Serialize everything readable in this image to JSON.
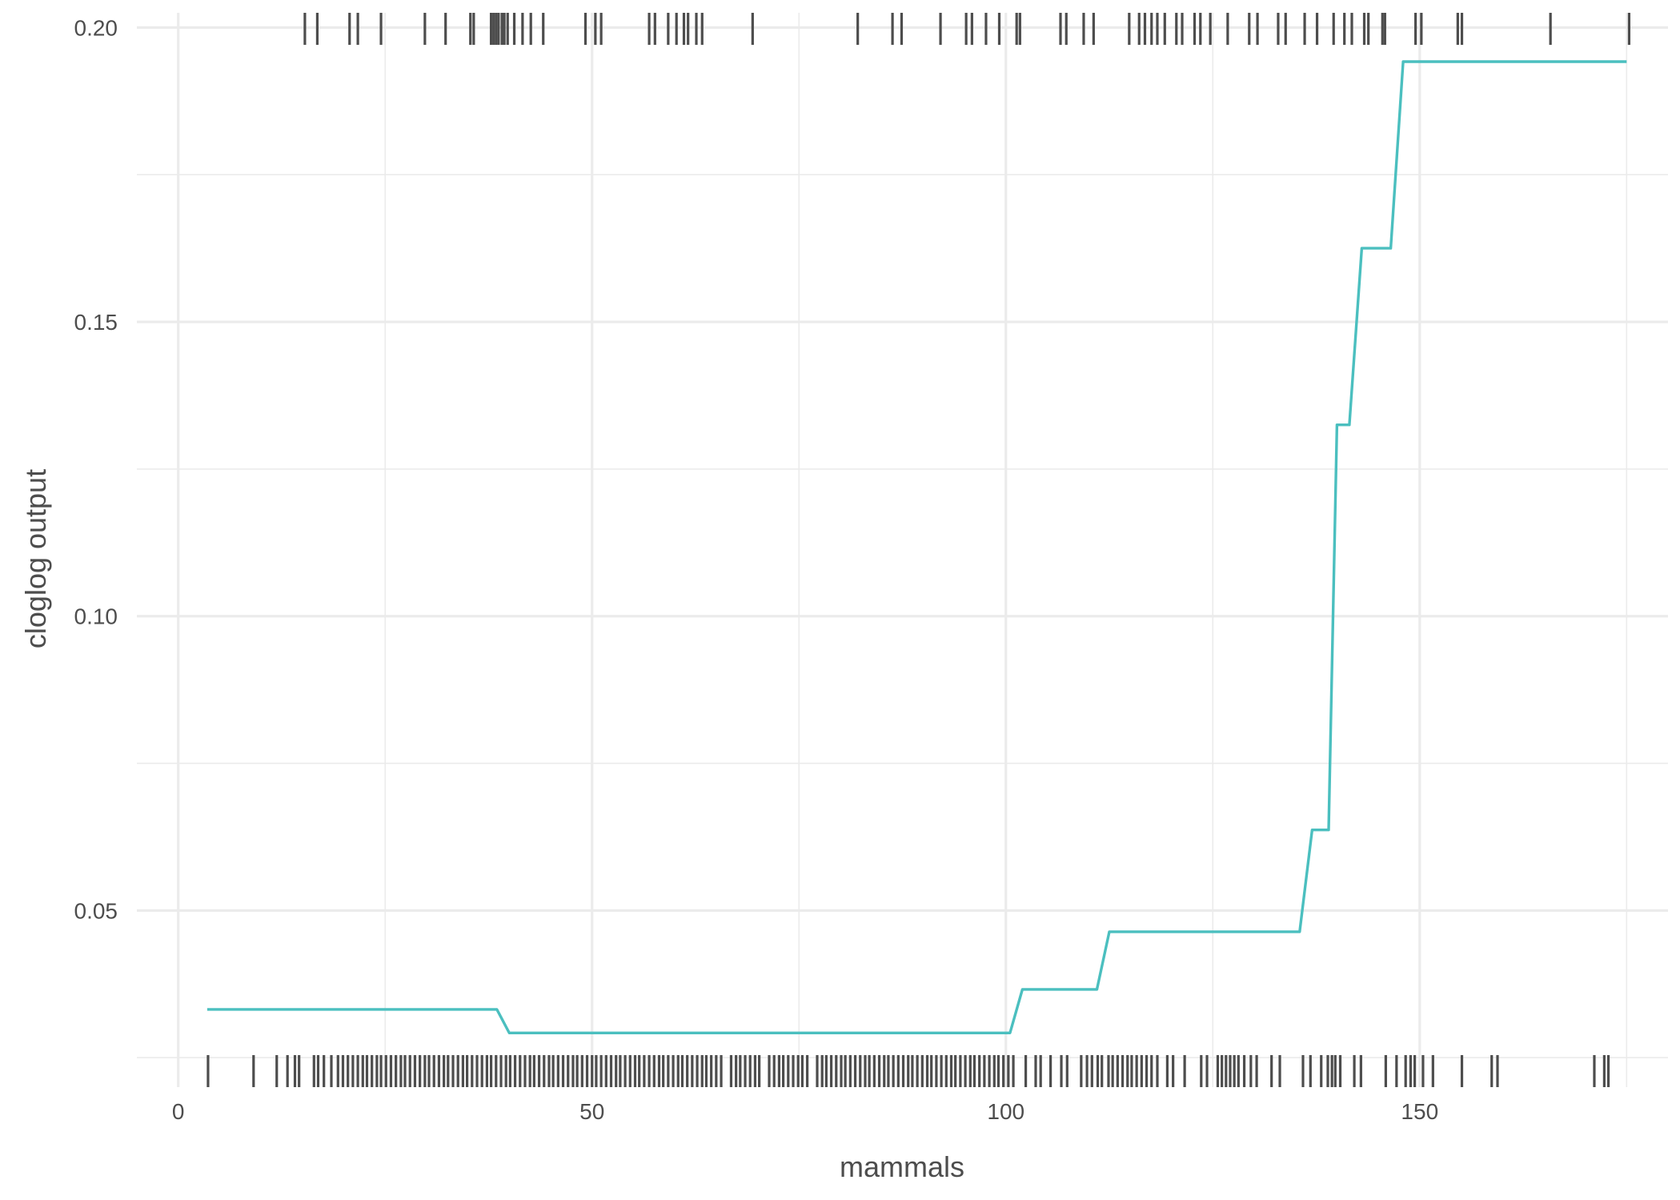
{
  "chart_data": {
    "type": "line",
    "title": "",
    "xlabel": "mammals",
    "ylabel": "cloglog output",
    "xlim": [
      -5,
      180
    ],
    "ylim": [
      0.02,
      0.2025
    ],
    "x_ticks": [
      0,
      50,
      100,
      150
    ],
    "x_tick_labels": [
      "0",
      "50",
      "100",
      "150"
    ],
    "y_ticks": [
      0.05,
      0.1,
      0.15,
      0.2
    ],
    "y_tick_labels": [
      "0.05",
      "0.10",
      "0.15",
      "0.20"
    ],
    "y_minor_ticks": [
      0.025,
      0.075,
      0.125,
      0.175
    ],
    "x_minor_ticks": [
      25,
      75,
      125,
      175
    ],
    "grid": true,
    "colors": {
      "line": "#4bbfbf",
      "rug": "#4d4d4d",
      "grid": "#ebebeb",
      "text": "#4d4d4d"
    },
    "series": [
      {
        "x": [
          3.5,
          38.5,
          40,
          100.5,
          102,
          111,
          112.5,
          135.5,
          137,
          139,
          140,
          141.5,
          143,
          146.5,
          148,
          149,
          175
        ],
        "y": [
          0.0332,
          0.0332,
          0.0292,
          0.0292,
          0.0366,
          0.0366,
          0.0464,
          0.0464,
          0.0637,
          0.0637,
          0.1325,
          0.1325,
          0.1625,
          0.1625,
          0.1942,
          0.1942,
          0.1942
        ]
      }
    ],
    "rug_presence": [
      15.3,
      16.8,
      20.7,
      21.7,
      24.5,
      29.8,
      32.3,
      35.3,
      35.7,
      37.8,
      38.1,
      38.4,
      38.7,
      39.1,
      39.4,
      39.8,
      40.6,
      41.6,
      42.6,
      44.1,
      49.2,
      50.4,
      51.1,
      56.9,
      57.6,
      59.2,
      60.2,
      61.1,
      61.6,
      62.6,
      63.3,
      69.4,
      82.1,
      86.3,
      87.4,
      92.1,
      95.2,
      95.9,
      97.6,
      99.2,
      101.3,
      101.7,
      106.6,
      107.3,
      109.4,
      110.6,
      114.9,
      116.1,
      116.8,
      117.6,
      118.3,
      119.2,
      120.6,
      121.3,
      122.8,
      123.5,
      124.7,
      126.8,
      129.4,
      130.4,
      132.9,
      133.8,
      136.1,
      137.6,
      139.6,
      140.9,
      141.8,
      143.3,
      143.8,
      145.5,
      145.8,
      149.5,
      150.2,
      154.6,
      155.1,
      165.8,
      175.3
    ],
    "rug_background": [
      3.6,
      9.1,
      11.9,
      13.2,
      14.1,
      14.6,
      16.4,
      16.9,
      17.6,
      18.5,
      19.3,
      19.9,
      20.5,
      21.1,
      21.7,
      22.3,
      22.8,
      23.4,
      24.0,
      24.5,
      25.1,
      25.7,
      26.3,
      26.9,
      27.4,
      28.0,
      28.6,
      29.2,
      29.8,
      30.3,
      30.9,
      31.5,
      32.1,
      32.6,
      33.2,
      33.8,
      34.4,
      34.9,
      35.5,
      36.1,
      36.7,
      37.3,
      37.8,
      38.4,
      39.0,
      39.6,
      40.1,
      40.7,
      41.3,
      41.9,
      42.5,
      43.0,
      43.6,
      44.2,
      44.8,
      45.3,
      45.9,
      46.5,
      47.1,
      47.7,
      48.2,
      48.8,
      49.4,
      50.0,
      50.5,
      51.1,
      51.7,
      52.3,
      52.9,
      53.4,
      54.0,
      54.6,
      55.2,
      55.7,
      56.3,
      56.9,
      57.5,
      58.1,
      58.6,
      59.2,
      59.8,
      60.4,
      60.9,
      61.5,
      62.1,
      62.7,
      63.3,
      63.8,
      64.4,
      65.0,
      65.6,
      66.8,
      67.4,
      67.9,
      68.5,
      69.1,
      69.7,
      70.2,
      71.4,
      72.0,
      72.6,
      73.1,
      73.7,
      74.3,
      74.9,
      75.4,
      76.0,
      77.2,
      77.8,
      78.3,
      78.9,
      79.5,
      80.1,
      80.6,
      81.2,
      81.8,
      82.4,
      83.0,
      83.5,
      84.1,
      84.7,
      85.3,
      85.8,
      86.4,
      87.0,
      87.6,
      88.2,
      88.7,
      89.3,
      89.9,
      90.5,
      91.0,
      91.6,
      92.2,
      92.8,
      93.4,
      93.9,
      94.5,
      95.1,
      95.7,
      96.2,
      96.8,
      97.4,
      98.0,
      98.6,
      99.1,
      99.7,
      100.3,
      100.9,
      102.4,
      103.6,
      104.2,
      105.4,
      106.7,
      107.4,
      109.1,
      109.8,
      110.4,
      111.1,
      111.6,
      112.4,
      112.9,
      113.5,
      114.1,
      114.7,
      115.2,
      115.8,
      116.4,
      117.0,
      117.6,
      118.3,
      119.5,
      120.2,
      121.6,
      123.6,
      124.3,
      125.6,
      126.1,
      126.6,
      127.1,
      127.6,
      128.1,
      128.8,
      129.6,
      130.3,
      132.1,
      133.1,
      135.9,
      136.8,
      138.1,
      138.9,
      139.4,
      139.8,
      140.4,
      142.1,
      142.9,
      145.9,
      147.2,
      148.3,
      148.9,
      149.4,
      150.4,
      151.6,
      155.1,
      158.7,
      159.4,
      171.1,
      172.3,
      172.8
    ]
  }
}
